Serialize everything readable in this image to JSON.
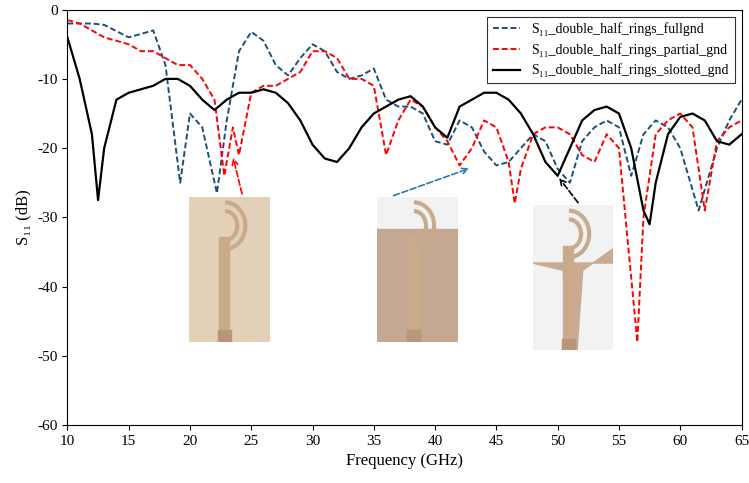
{
  "chart_data": {
    "type": "line",
    "x_label": "Frequency (GHz)",
    "y_label": "S₁₁ (dB)",
    "xlim": [
      10,
      65
    ],
    "xticks": [
      10,
      15,
      20,
      25,
      30,
      35,
      40,
      45,
      50,
      55,
      60,
      65
    ],
    "ylim": [
      -60,
      0
    ],
    "yticks": [
      -60,
      -50,
      -40,
      -30,
      -20,
      -10,
      0
    ],
    "grid": false,
    "legend": "upper right",
    "series": [
      {
        "name": "S₁₁_double_half_rings_fullgnd",
        "color": "#1f4e79",
        "line_style": "dashed",
        "x": [
          10,
          12,
          13,
          15,
          16,
          17,
          18,
          19.2,
          20,
          21,
          22.2,
          23,
          24,
          25,
          26,
          27,
          28,
          29,
          30,
          31,
          32,
          33,
          34,
          35,
          36,
          37,
          38,
          39,
          40,
          41,
          42,
          43,
          44,
          45,
          46,
          47,
          48,
          49,
          50,
          51,
          52,
          53,
          54,
          55,
          56,
          57,
          58,
          59,
          60,
          61.5,
          62,
          63,
          64,
          65
        ],
        "values": [
          -2,
          -2,
          -2.2,
          -4,
          -3.5,
          -3,
          -8,
          -25,
          -15,
          -17,
          -26.5,
          -16,
          -6,
          -3.2,
          -4.5,
          -8,
          -9.5,
          -7,
          -5,
          -6,
          -9,
          -10,
          -9.5,
          -8.5,
          -13,
          -14,
          -14,
          -15,
          -19,
          -19.5,
          -16,
          -17,
          -20.5,
          -22.5,
          -22,
          -20,
          -18,
          -19,
          -23,
          -25,
          -19,
          -17,
          -16,
          -17,
          -24,
          -18,
          -16,
          -17,
          -20,
          -29,
          -26,
          -20,
          -16,
          -13
        ]
      },
      {
        "name": "S₁₁_double_half_rings_partial_gnd",
        "color": "#ff0000",
        "line_style": "dashed",
        "x": [
          10,
          11,
          12,
          13,
          15,
          16,
          17,
          18,
          19,
          20,
          21,
          22,
          22.8,
          23.5,
          24,
          25,
          26,
          27,
          28,
          29,
          30,
          31,
          32,
          33,
          34,
          35,
          36,
          37,
          38,
          39,
          40,
          41,
          42,
          43,
          44,
          45,
          46,
          46.5,
          47,
          48,
          49,
          50,
          51,
          52,
          53,
          54,
          55,
          55.8,
          56.5,
          57,
          58,
          59,
          60,
          61,
          62,
          63,
          64,
          65
        ],
        "values": [
          -1.5,
          -2,
          -3,
          -4,
          -5,
          -6,
          -6,
          -7,
          -8,
          -8,
          -10,
          -13,
          -24,
          -17,
          -21,
          -12,
          -11,
          -11,
          -10,
          -9,
          -6,
          -6,
          -7,
          -10,
          -10,
          -11,
          -21,
          -16,
          -13,
          -14,
          -17,
          -19,
          -22.5,
          -20,
          -16,
          -17,
          -22,
          -28,
          -23,
          -18,
          -17,
          -17,
          -18,
          -21,
          -22,
          -18,
          -20,
          -35,
          -48,
          -30,
          -18,
          -16,
          -15,
          -17,
          -29,
          -19,
          -17,
          -16
        ]
      },
      {
        "name": "S₁₁_double_half_rings_slotted_gnd",
        "color": "#000000",
        "line_style": "solid",
        "x": [
          10,
          11,
          12,
          12.5,
          13,
          14,
          15,
          17,
          18,
          19,
          20,
          21,
          22,
          23,
          24,
          25,
          26,
          27,
          28,
          29,
          30,
          31,
          32,
          33,
          34,
          35,
          36,
          37,
          38,
          39,
          40,
          41,
          42,
          43,
          44,
          45,
          46,
          47,
          48,
          49,
          50,
          51,
          52,
          53,
          54,
          55,
          56,
          57,
          57.5,
          58,
          59,
          60,
          61,
          62,
          63,
          64,
          65
        ],
        "values": [
          -4,
          -10,
          -18,
          -27.5,
          -20,
          -13,
          -12,
          -11,
          -10,
          -10,
          -11,
          -13,
          -14.5,
          -13,
          -12,
          -12,
          -11.5,
          -12,
          -13.5,
          -16,
          -19.5,
          -21.5,
          -22,
          -20,
          -17,
          -15,
          -14,
          -13,
          -12.5,
          -14,
          -17,
          -18.5,
          -14,
          -13,
          -12,
          -12,
          -13,
          -15,
          -18,
          -22,
          -24,
          -20,
          -16,
          -14.5,
          -14,
          -15,
          -20,
          -29,
          -31,
          -25,
          -18,
          -15.5,
          -15,
          -16,
          -19,
          -19.5,
          -18
        ]
      }
    ]
  }
}
